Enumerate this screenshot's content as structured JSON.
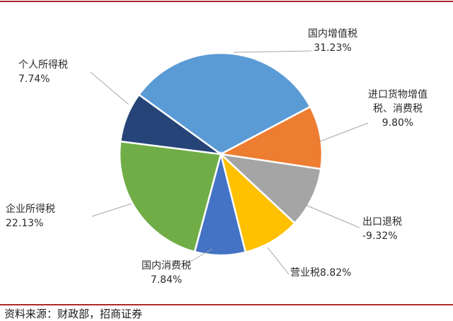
{
  "chart_data": {
    "type": "pie",
    "slices": [
      {
        "label": "国内增值税",
        "value_label": "31.23%",
        "value": 31.23,
        "color": "#5b9bd5"
      },
      {
        "label": "进口货物增值税、消费税",
        "label_lines": [
          "进口货物增值",
          "税、消费税"
        ],
        "value_label": "9.80%",
        "value": 9.8,
        "color": "#ed7d31"
      },
      {
        "label": "出口退税",
        "value_label": "-9.32%",
        "value": -9.32,
        "color": "#a5a5a5"
      },
      {
        "label": "营业税",
        "value_label": "8.82%",
        "value": 8.82,
        "color": "#ffc000"
      },
      {
        "label": "国内消费税",
        "value_label": "7.84%",
        "value": 7.84,
        "color": "#4472c4"
      },
      {
        "label": "企业所得税",
        "value_label": "22.13%",
        "value": 22.13,
        "color": "#70ad47"
      },
      {
        "label": "个人所得税",
        "value_label": "7.74%",
        "value": 7.74,
        "color": "#264478"
      }
    ]
  },
  "source": "资料来源：财政部，招商证券"
}
